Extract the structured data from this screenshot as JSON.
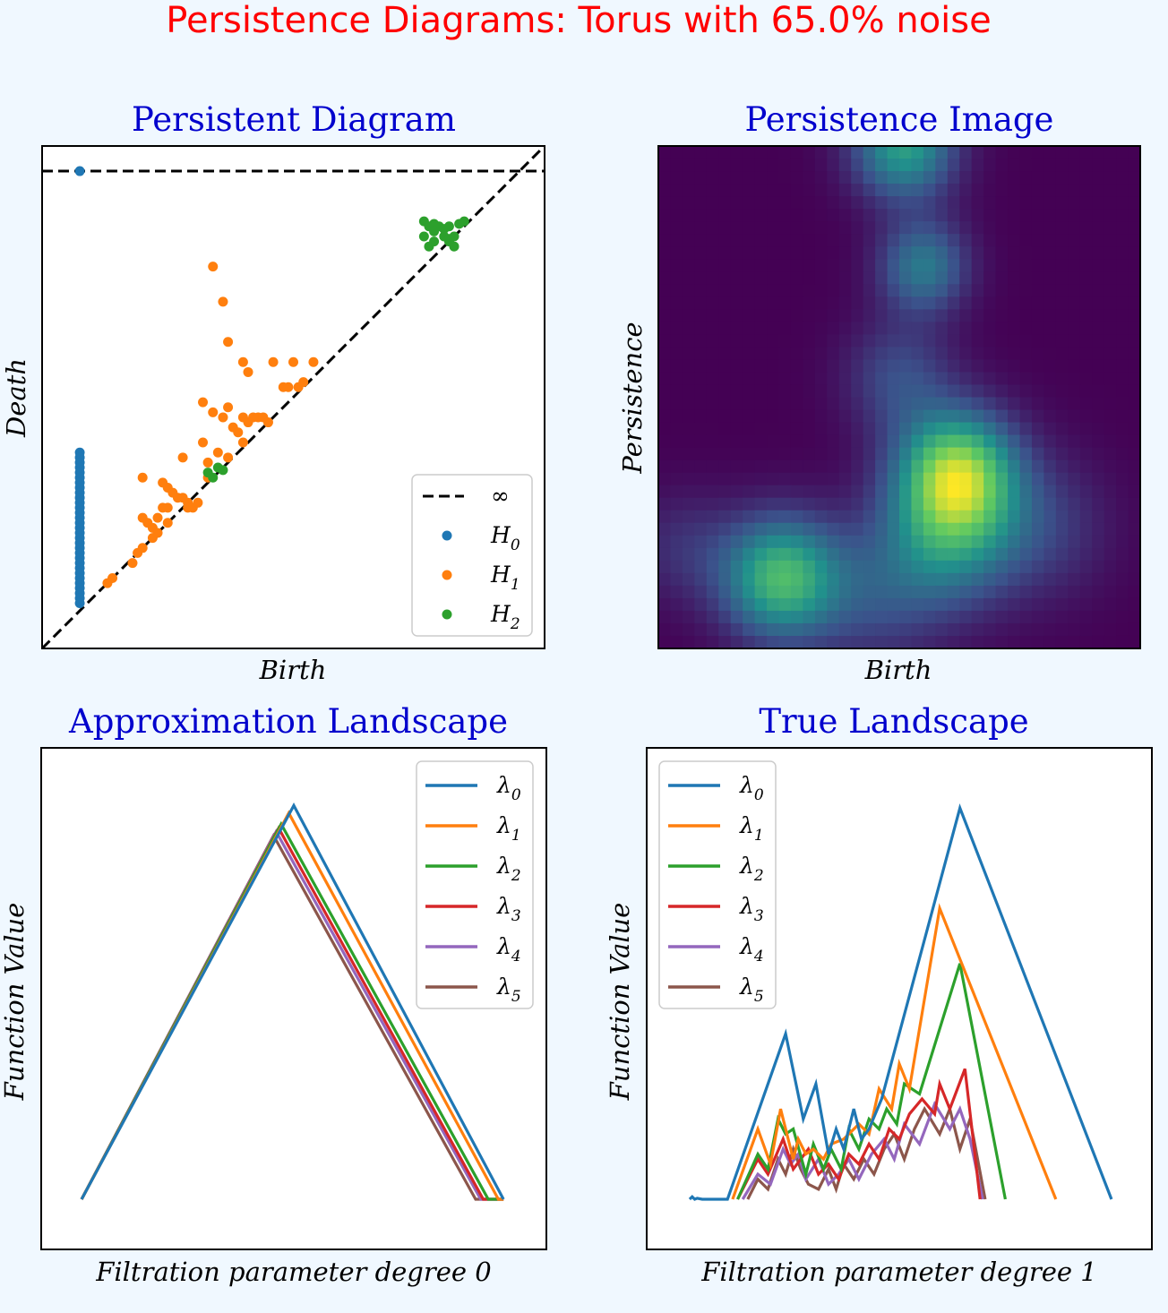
{
  "figure": {
    "suptitle": "Persistence Diagrams:  Torus with 65.0% noise",
    "title_color": "#ff0000",
    "subtitle_color": "#0000cd",
    "background": "#f0f8ff"
  },
  "chart_data": [
    {
      "type": "scatter",
      "title": "Persistent Diagram",
      "xlabel": "Birth",
      "ylabel": "Death",
      "axis_range": [
        0,
        1
      ],
      "infinity_level": 0.95,
      "legend_position": "bottom-right",
      "legend": [
        {
          "label": "∞",
          "base": "∞",
          "sub": "",
          "kind": "line",
          "color": "#000000"
        },
        {
          "label": "H0",
          "base": "H",
          "sub": "0",
          "kind": "dot",
          "color": "#1f77b4"
        },
        {
          "label": "H1",
          "base": "H",
          "sub": "1",
          "kind": "dot",
          "color": "#ff7f0e"
        },
        {
          "label": "H2",
          "base": "H",
          "sub": "2",
          "kind": "dot",
          "color": "#2ca02c"
        }
      ],
      "series": [
        {
          "name": "H0",
          "color": "#1f77b4",
          "points": [
            [
              0.075,
              0.95
            ],
            [
              0.075,
              0.39
            ],
            [
              0.075,
              0.38
            ],
            [
              0.075,
              0.37
            ],
            [
              0.075,
              0.36
            ],
            [
              0.075,
              0.35
            ],
            [
              0.075,
              0.34
            ],
            [
              0.075,
              0.33
            ],
            [
              0.075,
              0.32
            ],
            [
              0.075,
              0.31
            ],
            [
              0.075,
              0.3
            ],
            [
              0.075,
              0.29
            ],
            [
              0.075,
              0.28
            ],
            [
              0.075,
              0.27
            ],
            [
              0.075,
              0.26
            ],
            [
              0.075,
              0.25
            ],
            [
              0.075,
              0.24
            ],
            [
              0.075,
              0.23
            ],
            [
              0.075,
              0.22
            ],
            [
              0.075,
              0.21
            ],
            [
              0.075,
              0.2
            ],
            [
              0.075,
              0.19
            ],
            [
              0.075,
              0.18
            ],
            [
              0.075,
              0.17
            ],
            [
              0.075,
              0.16
            ],
            [
              0.075,
              0.15
            ],
            [
              0.075,
              0.14
            ],
            [
              0.075,
              0.13
            ],
            [
              0.075,
              0.12
            ],
            [
              0.075,
              0.11
            ],
            [
              0.075,
              0.1
            ],
            [
              0.075,
              0.09
            ]
          ]
        },
        {
          "name": "H1",
          "color": "#ff7f0e",
          "points": [
            [
              0.34,
              0.76
            ],
            [
              0.36,
              0.69
            ],
            [
              0.37,
              0.61
            ],
            [
              0.4,
              0.57
            ],
            [
              0.41,
              0.55
            ],
            [
              0.46,
              0.57
            ],
            [
              0.5,
              0.57
            ],
            [
              0.54,
              0.57
            ],
            [
              0.32,
              0.49
            ],
            [
              0.34,
              0.47
            ],
            [
              0.37,
              0.48
            ],
            [
              0.36,
              0.46
            ],
            [
              0.4,
              0.46
            ],
            [
              0.42,
              0.46
            ],
            [
              0.43,
              0.46
            ],
            [
              0.44,
              0.46
            ],
            [
              0.45,
              0.45
            ],
            [
              0.38,
              0.44
            ],
            [
              0.39,
              0.43
            ],
            [
              0.41,
              0.45
            ],
            [
              0.48,
              0.52
            ],
            [
              0.49,
              0.52
            ],
            [
              0.51,
              0.52
            ],
            [
              0.52,
              0.53
            ],
            [
              0.4,
              0.41
            ],
            [
              0.32,
              0.41
            ],
            [
              0.35,
              0.39
            ],
            [
              0.37,
              0.38
            ],
            [
              0.28,
              0.38
            ],
            [
              0.33,
              0.37
            ],
            [
              0.2,
              0.34
            ],
            [
              0.24,
              0.33
            ],
            [
              0.25,
              0.32
            ],
            [
              0.26,
              0.31
            ],
            [
              0.27,
              0.3
            ],
            [
              0.28,
              0.3
            ],
            [
              0.29,
              0.29
            ],
            [
              0.29,
              0.28
            ],
            [
              0.3,
              0.28
            ],
            [
              0.31,
              0.29
            ],
            [
              0.24,
              0.28
            ],
            [
              0.25,
              0.28
            ],
            [
              0.2,
              0.26
            ],
            [
              0.23,
              0.26
            ],
            [
              0.21,
              0.25
            ],
            [
              0.22,
              0.24
            ],
            [
              0.25,
              0.25
            ],
            [
              0.23,
              0.23
            ],
            [
              0.22,
              0.22
            ],
            [
              0.2,
              0.2
            ],
            [
              0.19,
              0.19
            ],
            [
              0.18,
              0.17
            ],
            [
              0.14,
              0.14
            ],
            [
              0.13,
              0.13
            ],
            [
              0.33,
              0.34
            ]
          ]
        },
        {
          "name": "H2",
          "color": "#2ca02c",
          "points": [
            [
              0.76,
              0.85
            ],
            [
              0.77,
              0.84
            ],
            [
              0.78,
              0.845
            ],
            [
              0.79,
              0.84
            ],
            [
              0.8,
              0.835
            ],
            [
              0.81,
              0.84
            ],
            [
              0.83,
              0.845
            ],
            [
              0.84,
              0.85
            ],
            [
              0.78,
              0.83
            ],
            [
              0.8,
              0.82
            ],
            [
              0.81,
              0.81
            ],
            [
              0.82,
              0.82
            ],
            [
              0.78,
              0.81
            ],
            [
              0.77,
              0.8
            ],
            [
              0.81,
              0.815
            ],
            [
              0.76,
              0.82
            ],
            [
              0.82,
              0.8
            ],
            [
              0.33,
              0.35
            ],
            [
              0.34,
              0.34
            ],
            [
              0.35,
              0.36
            ],
            [
              0.36,
              0.355
            ]
          ]
        }
      ]
    },
    {
      "type": "heatmap",
      "title": "Persistence Image",
      "xlabel": "Birth",
      "ylabel": "Persistence",
      "grid_size": [
        40,
        40
      ],
      "colormap": "viridis",
      "blobs": [
        {
          "x": 0.255,
          "y": 0.14,
          "weight": 0.86,
          "spread": 0.085
        },
        {
          "x": 0.62,
          "y": 0.35,
          "weight": 1.0,
          "spread": 0.085
        },
        {
          "x": 0.6,
          "y": 0.22,
          "weight": 0.55,
          "spread": 0.1
        },
        {
          "x": 0.55,
          "y": 0.76,
          "weight": 0.52,
          "spread": 0.065
        },
        {
          "x": 0.51,
          "y": 1.0,
          "weight": 0.72,
          "spread": 0.075
        },
        {
          "x": 0.5,
          "y": 0.54,
          "weight": 0.3,
          "spread": 0.08
        },
        {
          "x": 0.8,
          "y": 0.24,
          "weight": 0.22,
          "spread": 0.1
        },
        {
          "x": 0.05,
          "y": 0.2,
          "weight": 0.18,
          "spread": 0.08
        },
        {
          "x": 0.45,
          "y": 0.1,
          "weight": 0.25,
          "spread": 0.1
        }
      ]
    },
    {
      "type": "line",
      "title": "Approximation Landscape",
      "xlabel": "Filtration parameter degree  0",
      "ylabel": "Function Value",
      "xlim": [
        0,
        1
      ],
      "ylim": [
        0,
        1
      ],
      "legend_position": "top-right",
      "series": [
        {
          "name": "λ0",
          "base": "λ",
          "sub": "0",
          "color": "#1f77b4",
          "x": [
            0.08,
            0.5,
            0.915
          ],
          "y": [
            0.1,
            0.885,
            0.1
          ]
        },
        {
          "name": "λ1",
          "base": "λ",
          "sub": "1",
          "color": "#ff7f0e",
          "x": [
            0.08,
            0.49,
            0.905,
            0.915
          ],
          "y": [
            0.1,
            0.87,
            0.1,
            0.1
          ]
        },
        {
          "name": "λ2",
          "base": "λ",
          "sub": "2",
          "color": "#2ca02c",
          "x": [
            0.08,
            0.475,
            0.885,
            0.915
          ],
          "y": [
            0.1,
            0.848,
            0.1,
            0.1
          ]
        },
        {
          "name": "λ3",
          "base": "λ",
          "sub": "3",
          "color": "#d62728",
          "x": [
            0.08,
            0.47,
            0.875,
            0.915
          ],
          "y": [
            0.1,
            0.84,
            0.1,
            0.1
          ]
        },
        {
          "name": "λ4",
          "base": "λ",
          "sub": "4",
          "color": "#9467bd",
          "x": [
            0.08,
            0.465,
            0.87,
            0.915
          ],
          "y": [
            0.1,
            0.833,
            0.1,
            0.1
          ]
        },
        {
          "name": "λ5",
          "base": "λ",
          "sub": "5",
          "color": "#8c564b",
          "x": [
            0.08,
            0.46,
            0.86,
            0.915
          ],
          "y": [
            0.1,
            0.825,
            0.1,
            0.1
          ]
        }
      ]
    },
    {
      "type": "line",
      "title": "True Landscape",
      "xlabel": "Filtration parameter degree  1",
      "ylabel": "Function Value",
      "xlim": [
        0,
        1
      ],
      "ylim": [
        0,
        1
      ],
      "legend_position": "top-left",
      "series": [
        {
          "name": "λ0",
          "base": "λ",
          "sub": "0",
          "color": "#1f77b4",
          "x": [
            0.085,
            0.09,
            0.095,
            0.1,
            0.11,
            0.12,
            0.13,
            0.16,
            0.24,
            0.275,
            0.31,
            0.335,
            0.36,
            0.375,
            0.39,
            0.41,
            0.425,
            0.44,
            0.465,
            0.62,
            0.92
          ],
          "y": [
            0.1,
            0.105,
            0.1,
            0.102,
            0.1,
            0.1,
            0.1,
            0.1,
            0.33,
            0.43,
            0.26,
            0.33,
            0.19,
            0.24,
            0.2,
            0.28,
            0.22,
            0.24,
            0.3,
            0.88,
            0.1
          ]
        },
        {
          "name": "λ1",
          "base": "λ",
          "sub": "1",
          "color": "#ff7f0e",
          "x": [
            0.17,
            0.22,
            0.245,
            0.265,
            0.29,
            0.3,
            0.315,
            0.33,
            0.35,
            0.365,
            0.39,
            0.42,
            0.44,
            0.46,
            0.485,
            0.5,
            0.52,
            0.58,
            0.81
          ],
          "y": [
            0.1,
            0.24,
            0.17,
            0.28,
            0.18,
            0.22,
            0.19,
            0.2,
            0.18,
            0.21,
            0.22,
            0.25,
            0.23,
            0.32,
            0.28,
            0.37,
            0.32,
            0.68,
            0.1
          ]
        },
        {
          "name": "λ2",
          "base": "λ",
          "sub": "2",
          "color": "#2ca02c",
          "x": [
            0.18,
            0.22,
            0.24,
            0.26,
            0.275,
            0.29,
            0.315,
            0.33,
            0.35,
            0.365,
            0.385,
            0.4,
            0.42,
            0.44,
            0.46,
            0.475,
            0.495,
            0.51,
            0.54,
            0.62,
            0.71
          ],
          "y": [
            0.1,
            0.19,
            0.16,
            0.26,
            0.23,
            0.24,
            0.15,
            0.21,
            0.16,
            0.2,
            0.16,
            0.24,
            0.2,
            0.26,
            0.24,
            0.28,
            0.25,
            0.33,
            0.31,
            0.57,
            0.1
          ]
        },
        {
          "name": "λ3",
          "base": "λ",
          "sub": "3",
          "color": "#d62728",
          "x": [
            0.18,
            0.22,
            0.24,
            0.27,
            0.29,
            0.32,
            0.34,
            0.36,
            0.38,
            0.4,
            0.42,
            0.44,
            0.46,
            0.48,
            0.5,
            0.52,
            0.545,
            0.57,
            0.58,
            0.6,
            0.63,
            0.66
          ],
          "y": [
            0.1,
            0.18,
            0.15,
            0.22,
            0.16,
            0.2,
            0.15,
            0.17,
            0.14,
            0.19,
            0.17,
            0.21,
            0.18,
            0.24,
            0.22,
            0.27,
            0.3,
            0.27,
            0.33,
            0.28,
            0.36,
            0.1
          ]
        },
        {
          "name": "λ4",
          "base": "λ",
          "sub": "4",
          "color": "#9467bd",
          "x": [
            0.19,
            0.22,
            0.245,
            0.27,
            0.285,
            0.3,
            0.315,
            0.34,
            0.36,
            0.38,
            0.4,
            0.42,
            0.445,
            0.47,
            0.49,
            0.51,
            0.54,
            0.57,
            0.6,
            0.62,
            0.64,
            0.665
          ],
          "y": [
            0.1,
            0.15,
            0.13,
            0.2,
            0.17,
            0.19,
            0.14,
            0.18,
            0.13,
            0.15,
            0.18,
            0.14,
            0.19,
            0.22,
            0.18,
            0.25,
            0.21,
            0.29,
            0.24,
            0.28,
            0.22,
            0.1
          ]
        },
        {
          "name": "λ5",
          "base": "λ",
          "sub": "5",
          "color": "#8c564b",
          "x": [
            0.2,
            0.22,
            0.24,
            0.26,
            0.275,
            0.29,
            0.305,
            0.32,
            0.34,
            0.36,
            0.375,
            0.39,
            0.41,
            0.43,
            0.45,
            0.47,
            0.49,
            0.51,
            0.53,
            0.55,
            0.58,
            0.6,
            0.62,
            0.64,
            0.67
          ],
          "y": [
            0.1,
            0.14,
            0.12,
            0.18,
            0.15,
            0.2,
            0.16,
            0.13,
            0.12,
            0.16,
            0.12,
            0.17,
            0.14,
            0.18,
            0.15,
            0.2,
            0.23,
            0.18,
            0.24,
            0.28,
            0.23,
            0.28,
            0.2,
            0.26,
            0.1
          ]
        }
      ]
    }
  ]
}
